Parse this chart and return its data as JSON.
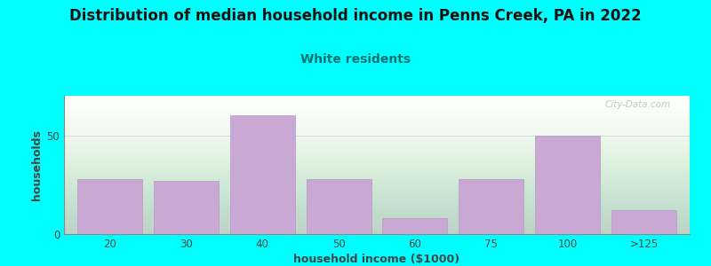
{
  "title": "Distribution of median household income in Penns Creek, PA in 2022",
  "subtitle": "White residents",
  "xlabel": "household income ($1000)",
  "ylabel": "households",
  "background_color": "#00FFFF",
  "bar_color": "#c9a8d4",
  "bar_edge_color": "#b898c8",
  "categories": [
    "20",
    "30",
    "40",
    "50",
    "60",
    "75",
    "100",
    ">125"
  ],
  "values": [
    28,
    27,
    60,
    28,
    8,
    28,
    50,
    12
  ],
  "ylim": [
    0,
    70
  ],
  "yticks": [
    0,
    50
  ],
  "title_fontsize": 12,
  "subtitle_fontsize": 10,
  "subtitle_color": "#007070",
  "axis_label_fontsize": 9,
  "tick_fontsize": 8.5,
  "watermark": "City-Data.com",
  "title_color": "#111111",
  "tick_color": "#444444",
  "grid_color": "#dddddd",
  "grid_linewidth": 0.7
}
